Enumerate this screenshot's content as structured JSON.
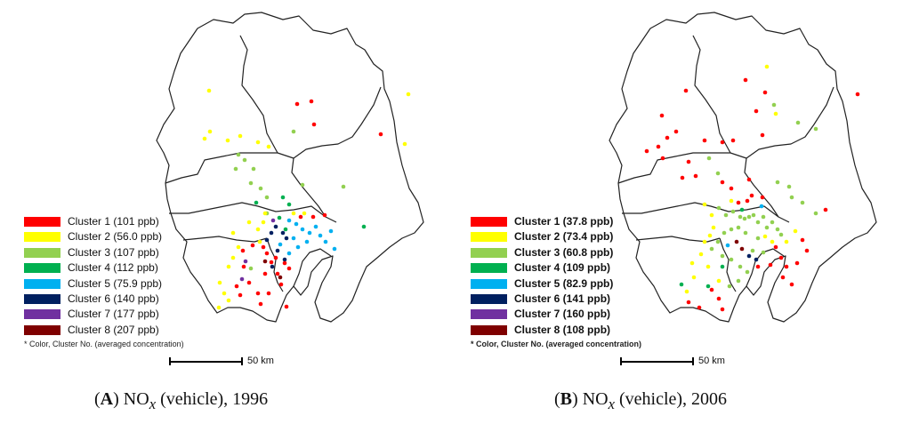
{
  "panels": [
    {
      "id": "A",
      "caption": {
        "letter": "A",
        "pre": "NO",
        "sub": "x",
        "post": " (vehicle), 1996"
      },
      "legend": [
        {
          "label": "Cluster 1 (101 ppb)",
          "color": "#ff0000"
        },
        {
          "label": "Cluster 2 (56.0 ppb)",
          "color": "#ffff00"
        },
        {
          "label": "Cluster 3 (107 ppb)",
          "color": "#92d050"
        },
        {
          "label": "Cluster 4 (112 ppb)",
          "color": "#00b050"
        },
        {
          "label": "Cluster 5 (75.9 ppb)",
          "color": "#00b0f0"
        },
        {
          "label": "Cluster 6 (140 ppb)",
          "color": "#002060"
        },
        {
          "label": "Cluster 7 (177 ppb)",
          "color": "#7030a0"
        },
        {
          "label": "Cluster 8 (207 ppb)",
          "color": "#7f0000"
        }
      ],
      "note": "* Color, Cluster No. (averaged concentration)",
      "scale_label": "50 km"
    },
    {
      "id": "B",
      "caption": {
        "letter": "B",
        "pre": "NO",
        "sub": "x",
        "post": " (vehicle), 2006"
      },
      "legend": [
        {
          "label": "Cluster 1 (37.8 ppb)",
          "color": "#ff0000"
        },
        {
          "label": "Cluster 2 (73.4 ppb)",
          "color": "#ffff00"
        },
        {
          "label": "Cluster 3 (60.8 ppb)",
          "color": "#92d050"
        },
        {
          "label": "Cluster 4 (109 ppb)",
          "color": "#00b050"
        },
        {
          "label": "Cluster 5 (82.9 ppb)",
          "color": "#00b0f0"
        },
        {
          "label": "Cluster 6 (141 ppb)",
          "color": "#002060"
        },
        {
          "label": "Cluster 7 (160 ppb)",
          "color": "#7030a0"
        },
        {
          "label": "Cluster 8 (108 ppb)",
          "color": "#7f0000"
        }
      ],
      "note": "* Color, Cluster No. (averaged concentration)",
      "scale_label": "50 km"
    }
  ],
  "icons": {
    "station": "monitoring-station-dot-icon"
  }
}
